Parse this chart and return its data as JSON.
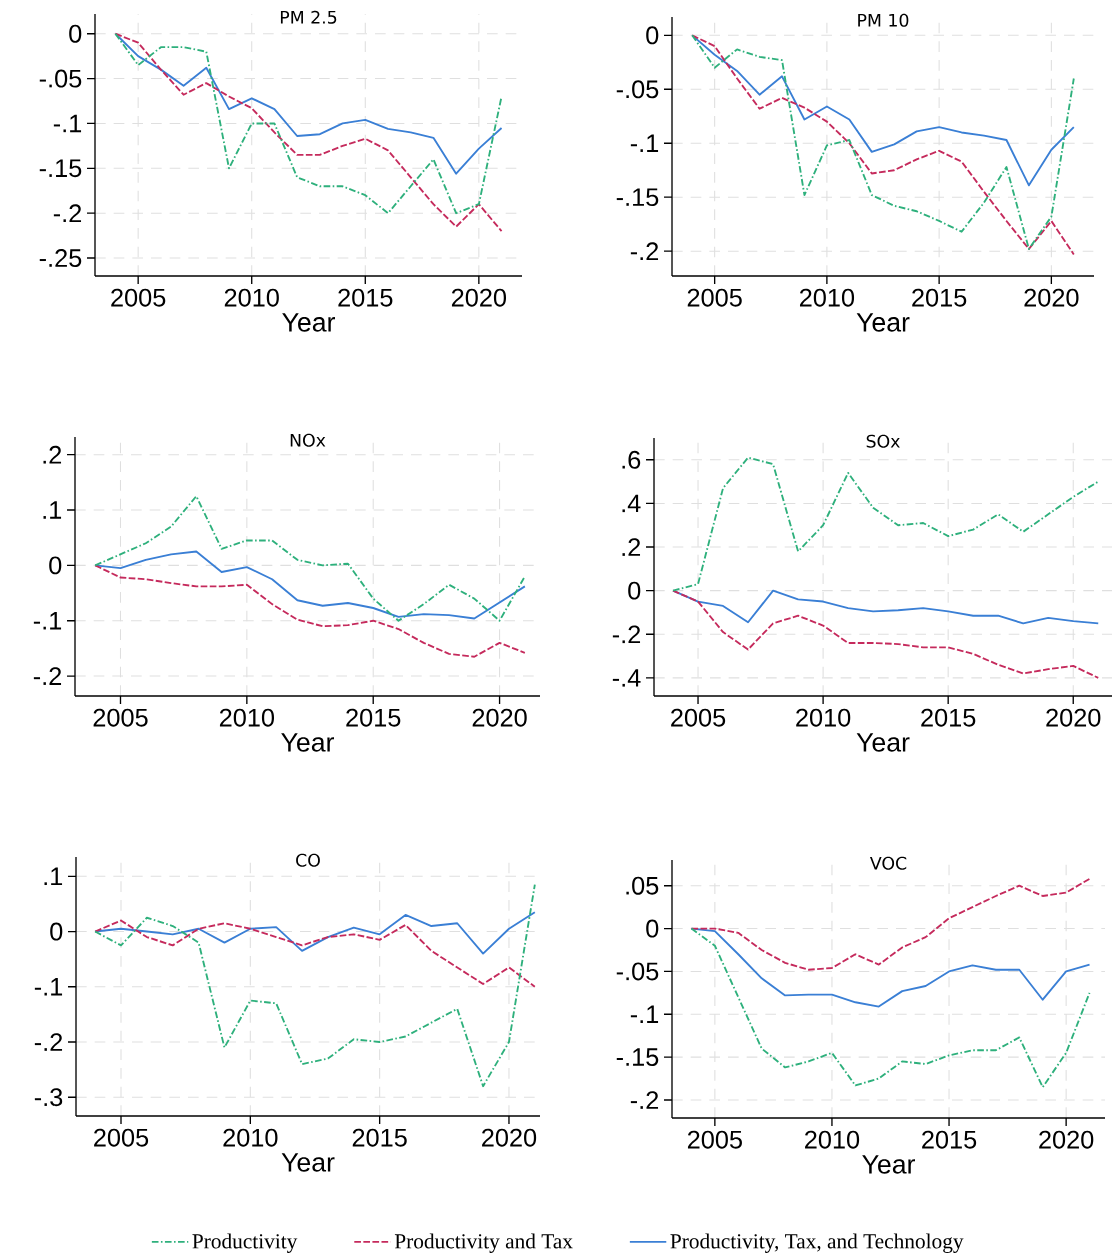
{
  "chart_data": [
    {
      "type": "line",
      "title": "PM 2.5",
      "xlabel": "Year",
      "grid": true,
      "x": [
        2004,
        2005,
        2006,
        2007,
        2008,
        2009,
        2010,
        2011,
        2012,
        2013,
        2014,
        2015,
        2016,
        2017,
        2018,
        2019,
        2020,
        2021
      ],
      "xlim": [
        2003.1,
        2021.9
      ],
      "xticks": [
        2005,
        2010,
        2015,
        2020
      ],
      "ylim": [
        -0.27,
        0.022
      ],
      "yticks": [
        0,
        {
          "value": -0.05,
          "label": "-.05"
        },
        {
          "value": -0.1,
          "label": "-.1"
        },
        {
          "value": -0.15,
          "label": "-.15"
        },
        {
          "value": -0.2,
          "label": "-.2"
        },
        {
          "value": -0.25,
          "label": "-.25"
        }
      ],
      "series": [
        {
          "color": "#2eb07c",
          "line_style": "dashdot",
          "values": [
            0,
            -0.035,
            -0.015,
            -0.015,
            -0.02,
            -0.15,
            -0.1,
            -0.1,
            -0.16,
            -0.17,
            -0.17,
            -0.18,
            -0.2,
            -0.17,
            -0.14,
            -0.2,
            -0.19,
            -0.07
          ]
        },
        {
          "color": "#c52a5c",
          "line_style": "dashed",
          "values": [
            0,
            -0.01,
            -0.04,
            -0.068,
            -0.055,
            -0.07,
            -0.083,
            -0.11,
            -0.135,
            -0.135,
            -0.125,
            -0.117,
            -0.13,
            -0.16,
            -0.19,
            -0.215,
            -0.19,
            -0.22
          ]
        },
        {
          "color": "#3a7fd5",
          "line_style": "solid",
          "values": [
            0,
            -0.025,
            -0.04,
            -0.058,
            -0.038,
            -0.084,
            -0.072,
            -0.084,
            -0.114,
            -0.112,
            -0.1,
            -0.096,
            -0.106,
            -0.11,
            -0.116,
            -0.156,
            -0.128,
            -0.105
          ]
        }
      ]
    },
    {
      "type": "line",
      "title": "PM 10",
      "xlabel": "Year",
      "grid": true,
      "x": [
        2004,
        2005,
        2006,
        2007,
        2008,
        2009,
        2010,
        2011,
        2012,
        2013,
        2014,
        2015,
        2016,
        2017,
        2018,
        2019,
        2020,
        2021
      ],
      "xlim": [
        2003.1,
        2021.9
      ],
      "xticks": [
        2005,
        2010,
        2015,
        2020
      ],
      "ylim": [
        -0.223,
        0.017
      ],
      "yticks": [
        0,
        {
          "value": -0.05,
          "label": "-.05"
        },
        {
          "value": -0.1,
          "label": "-.1"
        },
        {
          "value": -0.15,
          "label": "-.15"
        },
        {
          "value": -0.2,
          "label": "-.2"
        }
      ],
      "series": [
        {
          "color": "#2eb07c",
          "line_style": "dashdot",
          "values": [
            0,
            -0.03,
            -0.013,
            -0.02,
            -0.023,
            -0.148,
            -0.102,
            -0.097,
            -0.148,
            -0.158,
            -0.163,
            -0.172,
            -0.182,
            -0.155,
            -0.122,
            -0.198,
            -0.168,
            -0.04
          ]
        },
        {
          "color": "#c52a5c",
          "line_style": "dashed",
          "values": [
            0,
            -0.01,
            -0.04,
            -0.068,
            -0.058,
            -0.067,
            -0.08,
            -0.1,
            -0.128,
            -0.125,
            -0.115,
            -0.107,
            -0.117,
            -0.145,
            -0.172,
            -0.198,
            -0.172,
            -0.203
          ]
        },
        {
          "color": "#3a7fd5",
          "line_style": "solid",
          "values": [
            0,
            -0.018,
            -0.033,
            -0.055,
            -0.038,
            -0.078,
            -0.066,
            -0.078,
            -0.108,
            -0.101,
            -0.089,
            -0.085,
            -0.09,
            -0.093,
            -0.097,
            -0.139,
            -0.106,
            -0.085
          ]
        }
      ]
    },
    {
      "type": "line",
      "title": "NOx",
      "xlabel": "Year",
      "grid": true,
      "x": [
        2004,
        2005,
        2006,
        2007,
        2008,
        2009,
        2010,
        2011,
        2012,
        2013,
        2014,
        2015,
        2016,
        2017,
        2018,
        2019,
        2020,
        2021
      ],
      "xlim": [
        2003.2,
        2021.6
      ],
      "xticks": [
        2005,
        2010,
        2015,
        2020
      ],
      "ylim": [
        -0.236,
        0.232
      ],
      "yticks": [
        {
          "value": 0.2,
          "label": ".2"
        },
        {
          "value": 0.1,
          "label": ".1"
        },
        0,
        {
          "value": -0.1,
          "label": "-.1"
        },
        {
          "value": -0.2,
          "label": "-.2"
        }
      ],
      "series": [
        {
          "color": "#2eb07c",
          "line_style": "dashdot",
          "values": [
            0,
            0.02,
            0.04,
            0.07,
            0.125,
            0.03,
            0.045,
            0.045,
            0.01,
            0,
            0.003,
            -0.06,
            -0.1,
            -0.07,
            -0.035,
            -0.06,
            -0.1,
            -0.02
          ]
        },
        {
          "color": "#c52a5c",
          "line_style": "dashed",
          "values": [
            0,
            -0.022,
            -0.025,
            -0.032,
            -0.038,
            -0.038,
            -0.035,
            -0.07,
            -0.098,
            -0.11,
            -0.108,
            -0.1,
            -0.115,
            -0.14,
            -0.16,
            -0.165,
            -0.14,
            -0.158
          ]
        },
        {
          "color": "#3a7fd5",
          "line_style": "solid",
          "values": [
            0,
            -0.005,
            0.01,
            0.02,
            0.025,
            -0.012,
            -0.003,
            -0.025,
            -0.063,
            -0.073,
            -0.068,
            -0.077,
            -0.093,
            -0.088,
            -0.09,
            -0.096,
            -0.067,
            -0.038
          ]
        }
      ]
    },
    {
      "type": "line",
      "title": "SOx",
      "xlabel": "Year",
      "grid": true,
      "x": [
        2004,
        2005,
        2006,
        2007,
        2008,
        2009,
        2010,
        2011,
        2012,
        2013,
        2014,
        2015,
        2016,
        2017,
        2018,
        2019,
        2020,
        2021
      ],
      "xlim": [
        2003.24,
        2021.55
      ],
      "xticks": [
        2005,
        2010,
        2015,
        2020
      ],
      "ylim": [
        -0.483,
        0.7
      ],
      "yticks": [
        {
          "value": 0.6,
          "label": ".6"
        },
        {
          "value": 0.4,
          "label": ".4"
        },
        {
          "value": 0.2,
          "label": ".2"
        },
        0,
        {
          "value": -0.2,
          "label": "-.2"
        },
        {
          "value": -0.4,
          "label": "-.4"
        }
      ],
      "series": [
        {
          "color": "#2eb07c",
          "line_style": "dashdot",
          "values": [
            0,
            0.03,
            0.47,
            0.61,
            0.58,
            0.18,
            0.3,
            0.54,
            0.38,
            0.3,
            0.31,
            0.25,
            0.28,
            0.35,
            0.27,
            0.35,
            0.43,
            0.5
          ]
        },
        {
          "color": "#c52a5c",
          "line_style": "dashed",
          "values": [
            0,
            -0.05,
            -0.19,
            -0.27,
            -0.15,
            -0.115,
            -0.16,
            -0.24,
            -0.24,
            -0.245,
            -0.26,
            -0.26,
            -0.29,
            -0.34,
            -0.38,
            -0.36,
            -0.345,
            -0.4
          ]
        },
        {
          "color": "#3a7fd5",
          "line_style": "solid",
          "values": [
            0,
            -0.05,
            -0.07,
            -0.145,
            0,
            -0.04,
            -0.05,
            -0.08,
            -0.095,
            -0.09,
            -0.08,
            -0.095,
            -0.115,
            -0.115,
            -0.15,
            -0.125,
            -0.14,
            -0.15
          ]
        }
      ]
    },
    {
      "type": "line",
      "title": "CO",
      "xlabel": "Year",
      "grid": true,
      "x": [
        2004,
        2005,
        2006,
        2007,
        2008,
        2009,
        2010,
        2011,
        2012,
        2013,
        2014,
        2015,
        2016,
        2017,
        2018,
        2019,
        2020,
        2021
      ],
      "xlim": [
        2003.26,
        2021.2
      ],
      "xticks": [
        2005,
        2010,
        2015,
        2020
      ],
      "ylim": [
        -0.334,
        0.135
      ],
      "yticks": [
        {
          "value": 0.1,
          "label": ".1"
        },
        0,
        {
          "value": -0.1,
          "label": "-.1"
        },
        {
          "value": -0.2,
          "label": "-.2"
        },
        {
          "value": -0.3,
          "label": "-.3"
        }
      ],
      "series": [
        {
          "color": "#2eb07c",
          "line_style": "dashdot",
          "values": [
            0,
            -0.025,
            0.025,
            0.01,
            -0.02,
            -0.21,
            -0.125,
            -0.13,
            -0.24,
            -0.23,
            -0.195,
            -0.2,
            -0.19,
            -0.165,
            -0.14,
            -0.28,
            -0.2,
            0.085
          ]
        },
        {
          "color": "#c52a5c",
          "line_style": "dashed",
          "values": [
            0,
            0.02,
            -0.01,
            -0.025,
            0.005,
            0.015,
            0.005,
            -0.01,
            -0.025,
            -0.01,
            -0.005,
            -0.015,
            0.012,
            -0.035,
            -0.065,
            -0.095,
            -0.065,
            -0.1
          ]
        },
        {
          "color": "#3a7fd5",
          "line_style": "solid",
          "values": [
            0,
            0.005,
            0,
            -0.005,
            0.005,
            -0.02,
            0.005,
            0.008,
            -0.035,
            -0.01,
            0.007,
            -0.005,
            0.03,
            0.01,
            0.015,
            -0.04,
            0.005,
            0.035
          ]
        }
      ]
    },
    {
      "type": "line",
      "title": "VOC",
      "xlabel": "Year",
      "grid": true,
      "legend": "bottom",
      "x": [
        2004,
        2005,
        2006,
        2007,
        2008,
        2009,
        2010,
        2011,
        2012,
        2013,
        2014,
        2015,
        2016,
        2017,
        2018,
        2019,
        2020,
        2021
      ],
      "xlim": [
        2003.17,
        2021.66
      ],
      "xticks": [
        2005,
        2010,
        2015,
        2020
      ],
      "ylim": [
        -0.221,
        0.08
      ],
      "yticks": [
        {
          "value": 0.05,
          "label": ".05"
        },
        0,
        {
          "value": -0.05,
          "label": "-.05"
        },
        {
          "value": -0.1,
          "label": "-.1"
        },
        {
          "value": -0.15,
          "label": "-.15"
        },
        {
          "value": -0.2,
          "label": "-.2"
        }
      ],
      "series": [
        {
          "name": "Productivity",
          "color": "#2eb07c",
          "line_style": "dashdot",
          "values": [
            0,
            -0.02,
            -0.08,
            -0.14,
            -0.162,
            -0.155,
            -0.145,
            -0.183,
            -0.175,
            -0.155,
            -0.158,
            -0.148,
            -0.142,
            -0.142,
            -0.127,
            -0.185,
            -0.145,
            -0.075
          ]
        },
        {
          "name": "Productivity and Tax",
          "color": "#c52a5c",
          "line_style": "dashed",
          "values": [
            0,
            0,
            -0.005,
            -0.025,
            -0.04,
            -0.048,
            -0.046,
            -0.03,
            -0.042,
            -0.022,
            -0.01,
            0.012,
            0.025,
            0.038,
            0.05,
            0.038,
            0.042,
            0.058
          ]
        },
        {
          "name": "Productivity, Tax, and Technology",
          "color": "#3a7fd5",
          "line_style": "solid",
          "values": [
            0,
            -0.003,
            -0.03,
            -0.058,
            -0.078,
            -0.077,
            -0.077,
            -0.086,
            -0.091,
            -0.073,
            -0.067,
            -0.05,
            -0.043,
            -0.048,
            -0.048,
            -0.083,
            -0.05,
            -0.042
          ]
        }
      ]
    }
  ]
}
